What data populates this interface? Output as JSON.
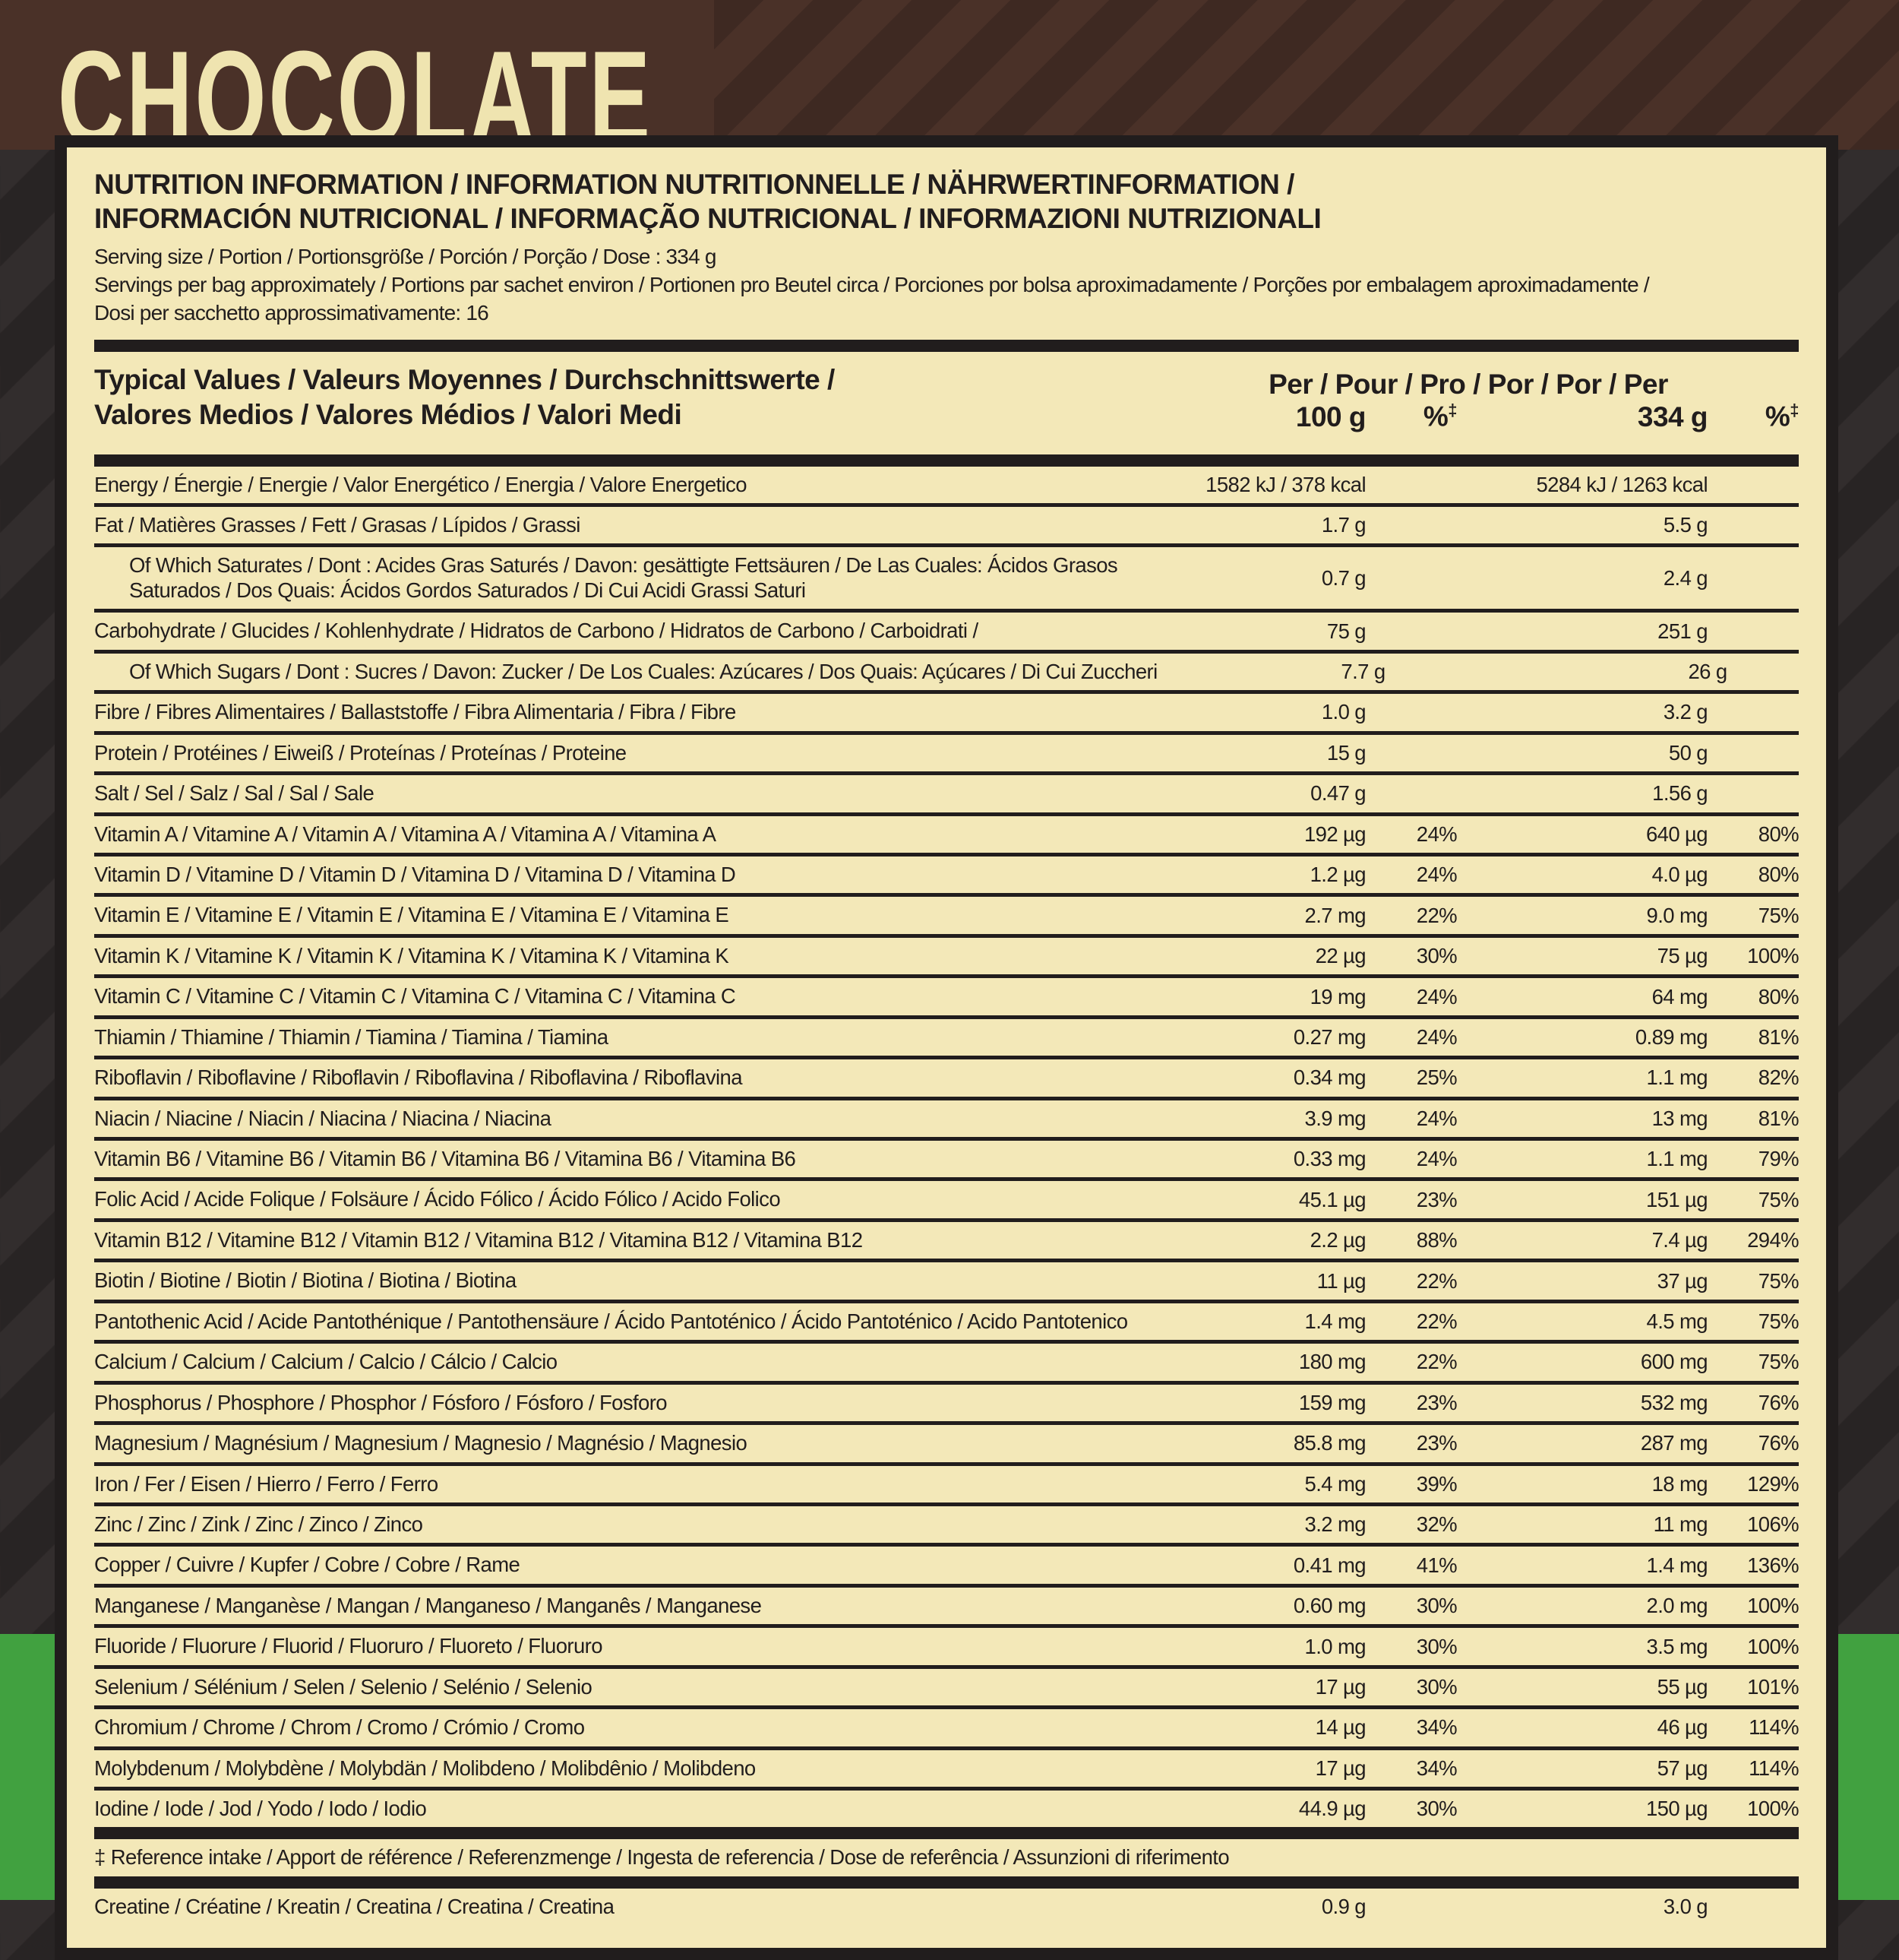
{
  "flavor": {
    "title": "CHOCOLATE"
  },
  "colors": {
    "brown": "#4a3128",
    "charcoal": "#2b2626",
    "cream": "#f3e8b8",
    "green": "#41a140",
    "ink": "#211d1d",
    "title-cream": "#efe4b0"
  },
  "panel": {
    "title_line1": "NUTRITION INFORMATION / INFORMATION NUTRITIONNELLE / NÄHRWERTINFORMATION /",
    "title_line2": "INFORMACIÓN NUTRICIONAL / INFORMAÇÃO NUTRICIONAL / INFORMAZIONI NUTRIZIONALI",
    "serving_size": "Serving size / Portion / Portionsgröße / Porción / Porção / Dose : 334 g",
    "servings_line1": "Servings per bag approximately / Portions par sachet environ / Portionen pro Beutel circa / Porciones por bolsa aproximadamente / Porções por embalagem aproximadamente /",
    "servings_line2": "Dosi per sacchetto approssimativamente: 16",
    "header": {
      "typical_values_line1": "Typical Values / Valeurs Moyennes / Durchschnittswerte /",
      "typical_values_line2": "Valores Medios / Valores Médios / Valori Medi",
      "per_line": "Per / Pour / Pro / Por / Por / Per",
      "col_100g": "100 g",
      "pct": "%",
      "dagger": "‡",
      "col_334g": "334 g"
    },
    "rows": [
      {
        "label": "Energy / Énergie / Energie / Valor Energético / Energia / Valore Energetico",
        "per100": "1582 kJ / 378 kcal",
        "pct100": "",
        "per334": "5284 kJ / 1263 kcal",
        "pct334": ""
      },
      {
        "label": "Fat / Matières Grasses / Fett / Grasas / Lípidos / Grassi",
        "per100": "1.7 g",
        "pct100": "",
        "per334": "5.5 g",
        "pct334": ""
      },
      {
        "label": "Of Which Saturates / Dont : Acides Gras Saturés / Davon: gesättigte Fettsäuren / De Las Cuales: Ácidos Grasos Saturados / Dos Quais: Ácidos Gordos Saturados / Di Cui Acidi Grassi Saturi",
        "per100": "0.7 g",
        "pct100": "",
        "per334": "2.4 g",
        "pct334": "",
        "indent": true,
        "wrap": true
      },
      {
        "label": "Carbohydrate / Glucides / Kohlenhydrate / Hidratos de Carbono / Hidratos de Carbono / Carboidrati /",
        "per100": "75 g",
        "pct100": "",
        "per334": "251 g",
        "pct334": ""
      },
      {
        "label": "Of Which Sugars / Dont : Sucres / Davon: Zucker / De Los Cuales: Azúcares / Dos Quais: Açúcares / Di Cui Zuccheri",
        "per100": "7.7 g",
        "pct100": "",
        "per334": "26 g",
        "pct334": "",
        "indent": true
      },
      {
        "label": "Fibre / Fibres Alimentaires / Ballaststoffe / Fibra Alimentaria / Fibra / Fibre",
        "per100": "1.0 g",
        "pct100": "",
        "per334": "3.2 g",
        "pct334": ""
      },
      {
        "label": "Protein / Protéines / Eiweiß / Proteínas / Proteínas / Proteine",
        "per100": "15 g",
        "pct100": "",
        "per334": "50 g",
        "pct334": ""
      },
      {
        "label": "Salt / Sel / Salz / Sal / Sal / Sale",
        "per100": "0.47 g",
        "pct100": "",
        "per334": "1.56 g",
        "pct334": ""
      },
      {
        "label": "Vitamin A / Vitamine A / Vitamin A / Vitamina A / Vitamina A / Vitamina A",
        "per100": "192 µg",
        "pct100": "24%",
        "per334": "640 µg",
        "pct334": "80%"
      },
      {
        "label": "Vitamin D / Vitamine D / Vitamin D / Vitamina D / Vitamina D / Vitamina D",
        "per100": "1.2 µg",
        "pct100": "24%",
        "per334": "4.0 µg",
        "pct334": "80%"
      },
      {
        "label": "Vitamin E / Vitamine E / Vitamin E / Vitamina E / Vitamina E / Vitamina E",
        "per100": "2.7 mg",
        "pct100": "22%",
        "per334": "9.0 mg",
        "pct334": "75%"
      },
      {
        "label": "Vitamin K / Vitamine K / Vitamin K / Vitamina K / Vitamina K / Vitamina K",
        "per100": "22 µg",
        "pct100": "30%",
        "per334": "75 µg",
        "pct334": "100%"
      },
      {
        "label": "Vitamin C / Vitamine C / Vitamin C / Vitamina C / Vitamina C / Vitamina C",
        "per100": "19 mg",
        "pct100": "24%",
        "per334": "64 mg",
        "pct334": "80%"
      },
      {
        "label": "Thiamin / Thiamine / Thiamin / Tiamina / Tiamina / Tiamina",
        "per100": "0.27 mg",
        "pct100": "24%",
        "per334": "0.89 mg",
        "pct334": "81%"
      },
      {
        "label": "Riboflavin / Riboflavine / Riboflavin / Riboflavina / Riboflavina / Riboflavina",
        "per100": "0.34 mg",
        "pct100": "25%",
        "per334": "1.1 mg",
        "pct334": "82%"
      },
      {
        "label": "Niacin / Niacine / Niacin / Niacina / Niacina / Niacina",
        "per100": "3.9 mg",
        "pct100": "24%",
        "per334": "13 mg",
        "pct334": "81%"
      },
      {
        "label": "Vitamin B6 / Vitamine B6 / Vitamin B6 / Vitamina B6 / Vitamina B6 / Vitamina B6",
        "per100": "0.33 mg",
        "pct100": "24%",
        "per334": "1.1 mg",
        "pct334": "79%"
      },
      {
        "label": "Folic Acid / Acide Folique / Folsäure / Ácido Fólico / Ácido Fólico / Acido Folico",
        "per100": "45.1 µg",
        "pct100": "23%",
        "per334": "151 µg",
        "pct334": "75%"
      },
      {
        "label": "Vitamin B12 / Vitamine B12 / Vitamin B12 / Vitamina B12 / Vitamina B12 / Vitamina B12",
        "per100": "2.2 µg",
        "pct100": "88%",
        "per334": "7.4 µg",
        "pct334": "294%"
      },
      {
        "label": "Biotin / Biotine / Biotin / Biotina / Biotina / Biotina",
        "per100": "11 µg",
        "pct100": "22%",
        "per334": "37 µg",
        "pct334": "75%"
      },
      {
        "label": "Pantothenic Acid / Acide Pantothénique / Pantothensäure / Ácido Pantoténico / Ácido Pantoténico / Acido Pantotenico",
        "per100": "1.4 mg",
        "pct100": "22%",
        "per334": "4.5 mg",
        "pct334": "75%"
      },
      {
        "label": "Calcium / Calcium / Calcium / Calcio / Cálcio / Calcio",
        "per100": "180 mg",
        "pct100": "22%",
        "per334": "600 mg",
        "pct334": "75%"
      },
      {
        "label": "Phosphorus / Phosphore / Phosphor / Fósforo / Fósforo / Fosforo",
        "per100": "159 mg",
        "pct100": "23%",
        "per334": "532 mg",
        "pct334": "76%"
      },
      {
        "label": "Magnesium / Magnésium / Magnesium / Magnesio / Magnésio / Magnesio",
        "per100": "85.8 mg",
        "pct100": "23%",
        "per334": "287 mg",
        "pct334": "76%"
      },
      {
        "label": "Iron / Fer / Eisen / Hierro / Ferro / Ferro",
        "per100": "5.4 mg",
        "pct100": "39%",
        "per334": "18 mg",
        "pct334": "129%"
      },
      {
        "label": "Zinc / Zinc / Zink / Zinc / Zinco / Zinco",
        "per100": "3.2 mg",
        "pct100": "32%",
        "per334": "11 mg",
        "pct334": "106%"
      },
      {
        "label": "Copper / Cuivre / Kupfer / Cobre / Cobre / Rame",
        "per100": "0.41 mg",
        "pct100": "41%",
        "per334": "1.4 mg",
        "pct334": "136%"
      },
      {
        "label": "Manganese / Manganèse / Mangan / Manganeso / Manganês / Manganese",
        "per100": "0.60 mg",
        "pct100": "30%",
        "per334": "2.0 mg",
        "pct334": "100%"
      },
      {
        "label": "Fluoride / Fluorure / Fluorid / Fluoruro / Fluoreto / Fluoruro",
        "per100": "1.0 mg",
        "pct100": "30%",
        "per334": "3.5 mg",
        "pct334": "100%"
      },
      {
        "label": "Selenium / Sélénium / Selen / Selenio / Selénio / Selenio",
        "per100": "17 µg",
        "pct100": "30%",
        "per334": "55 µg",
        "pct334": "101%"
      },
      {
        "label": "Chromium / Chrome / Chrom / Cromo / Crómio / Cromo",
        "per100": "14 µg",
        "pct100": "34%",
        "per334": "46 µg",
        "pct334": "114%"
      },
      {
        "label": "Molybdenum / Molybdène / Molybdän / Molibdeno / Molibdênio / Molibdeno",
        "per100": "17 µg",
        "pct100": "34%",
        "per334": "57 µg",
        "pct334": "114%"
      },
      {
        "label": "Iodine / Iode / Jod / Yodo / Iodo / Iodio",
        "per100": "44.9 µg",
        "pct100": "30%",
        "per334": "150 µg",
        "pct334": "100%",
        "rule": "thick"
      },
      {
        "label": "‡ Reference intake / Apport de référence / Referenzmenge / Ingesta de referencia / Dose de referência / Assunzioni di riferimento",
        "per100": "",
        "pct100": "",
        "per334": "",
        "pct334": "",
        "note": true,
        "rule": "thick"
      },
      {
        "label": "Creatine / Créatine / Kreatin / Creatina / Creatina / Creatina",
        "per100": "0.9 g",
        "pct100": "",
        "per334": "3.0 g",
        "pct334": "",
        "rule": "none"
      }
    ]
  }
}
